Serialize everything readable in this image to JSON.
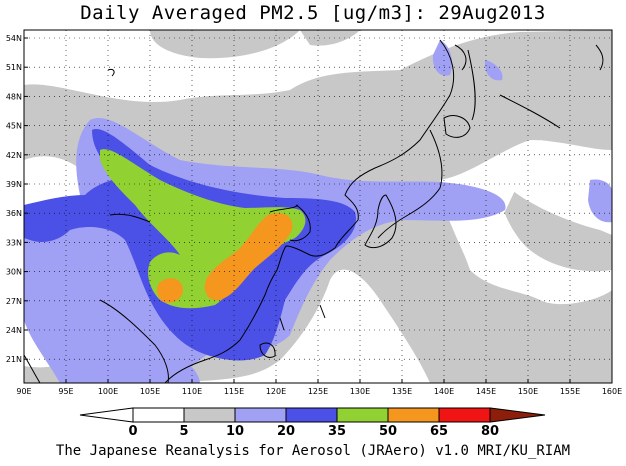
{
  "title": "Daily Averaged PM2.5 [ug/m3]: 29Aug2013",
  "credit": "The Japanese Reanalysis for Aerosol (JRAero) v1.0 MRI/KU_RIAM",
  "lon_ticks": [
    "90E",
    "95E",
    "100E",
    "105E",
    "110E",
    "115E",
    "120E",
    "125E",
    "130E",
    "135E",
    "140E",
    "145E",
    "150E",
    "155E",
    "160E"
  ],
  "lat_ticks": [
    "54N",
    "51N",
    "48N",
    "45N",
    "42N",
    "39N",
    "36N",
    "33N",
    "30N",
    "27N",
    "24N",
    "21N"
  ],
  "colorbar": {
    "labels": [
      "0",
      "5",
      "10",
      "20",
      "35",
      "50",
      "65",
      "80"
    ],
    "colors": [
      "#ffffff",
      "#c8c8c8",
      "#a0a0f5",
      "#4b50e6",
      "#91d232",
      "#f5961e",
      "#f01414",
      "#8c1e0a"
    ],
    "under_color": "#ffffff",
    "over_color": "#8c1e0a"
  },
  "legend": {
    "lowest_class_color": "#ffffff",
    "low_class_color": "#c8c8c8",
    "moderate_class_color": "#a0a0f5",
    "elevated_class_color": "#4b50e6",
    "high_class_color": "#91d232",
    "very_high_class_color": "#f5961e"
  }
}
